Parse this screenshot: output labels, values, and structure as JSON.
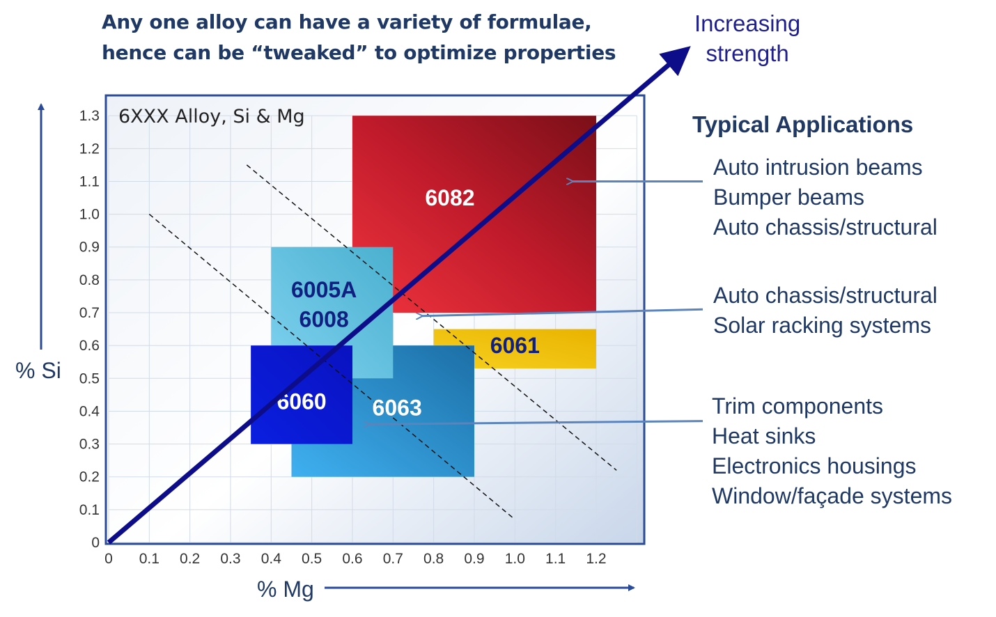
{
  "headline": {
    "line1": "Any one alloy can have a variety of formulae,",
    "line2": "hence can be “tweaked” to optimize properties"
  },
  "strength_arrow": {
    "line1": "Increasing",
    "line2": "strength"
  },
  "applications": {
    "title": "Typical Applications",
    "groups": [
      {
        "items": [
          "Auto intrusion beams",
          "Bumper beams",
          "Auto chassis/structural"
        ]
      },
      {
        "items": [
          "Auto chassis/structural",
          "Solar racking systems"
        ]
      },
      {
        "items": [
          "Trim components",
          "Heat sinks",
          "Electronics housings",
          "Window/façade systems"
        ]
      }
    ]
  },
  "chart_data": {
    "type": "scatter",
    "title": "6XXX Alloy, Si & Mg",
    "xlabel": "% Mg",
    "ylabel": "% Si",
    "xlim": [
      0,
      1.3
    ],
    "ylim": [
      0,
      1.3
    ],
    "x_ticks": [
      "0",
      "0.1",
      "0.2",
      "0.3",
      "0.4",
      "0.5",
      "0.6",
      "0.7",
      "0.8",
      "0.9",
      "1.0",
      "1.1",
      "1.2"
    ],
    "y_ticks": [
      "0",
      "0.1",
      "0.2",
      "0.3",
      "0.4",
      "0.5",
      "0.6",
      "0.7",
      "0.8",
      "0.9",
      "1.0",
      "1.1",
      "1.2",
      "1.3"
    ],
    "grid": true,
    "regions": [
      {
        "name": "6082",
        "mg": [
          0.6,
          1.2
        ],
        "si": [
          0.7,
          1.3
        ],
        "colors": [
          "#f0343e",
          "#c11b2b",
          "#7a0f18"
        ],
        "text_color": "#ffffff"
      },
      {
        "name": "6061",
        "mg": [
          0.8,
          1.2
        ],
        "si": [
          0.53,
          0.65
        ],
        "colors": [
          "#f7d020",
          "#e9b300"
        ],
        "text_color": "#102080"
      },
      {
        "name": "6063",
        "mg": [
          0.45,
          0.9
        ],
        "si": [
          0.2,
          0.6
        ],
        "colors": [
          "#3fb0f0",
          "#1c6fa6"
        ],
        "text_color": "#ffffff"
      },
      {
        "name": "6005A",
        "name2": "6008",
        "mg": [
          0.4,
          0.7
        ],
        "si": [
          0.5,
          0.9
        ],
        "colors": [
          "#7fd2f0",
          "#4bb0cf"
        ],
        "text_color": "#102080"
      },
      {
        "name": "6060",
        "mg": [
          0.35,
          0.6
        ],
        "si": [
          0.3,
          0.6
        ],
        "colors": [
          "#0a1fe0",
          "#0a12c0"
        ],
        "text_color": "#ffffff"
      }
    ],
    "dashed_lines": [
      {
        "from": [
          0.1,
          1.0
        ],
        "to": [
          1.0,
          0.07
        ]
      },
      {
        "from": [
          0.34,
          1.15
        ],
        "to": [
          1.25,
          0.22
        ]
      }
    ],
    "strength_line": {
      "from": [
        0,
        0
      ],
      "to": [
        1.45,
        1.53
      ]
    },
    "pointers": [
      {
        "from": [
          1.45,
          1.1
        ],
        "to": [
          1.14,
          1.1
        ]
      },
      {
        "from": [
          1.45,
          0.71
        ],
        "to": [
          0.77,
          0.69
        ]
      },
      {
        "from": [
          1.45,
          0.37
        ],
        "to": [
          0.64,
          0.36
        ]
      }
    ]
  }
}
